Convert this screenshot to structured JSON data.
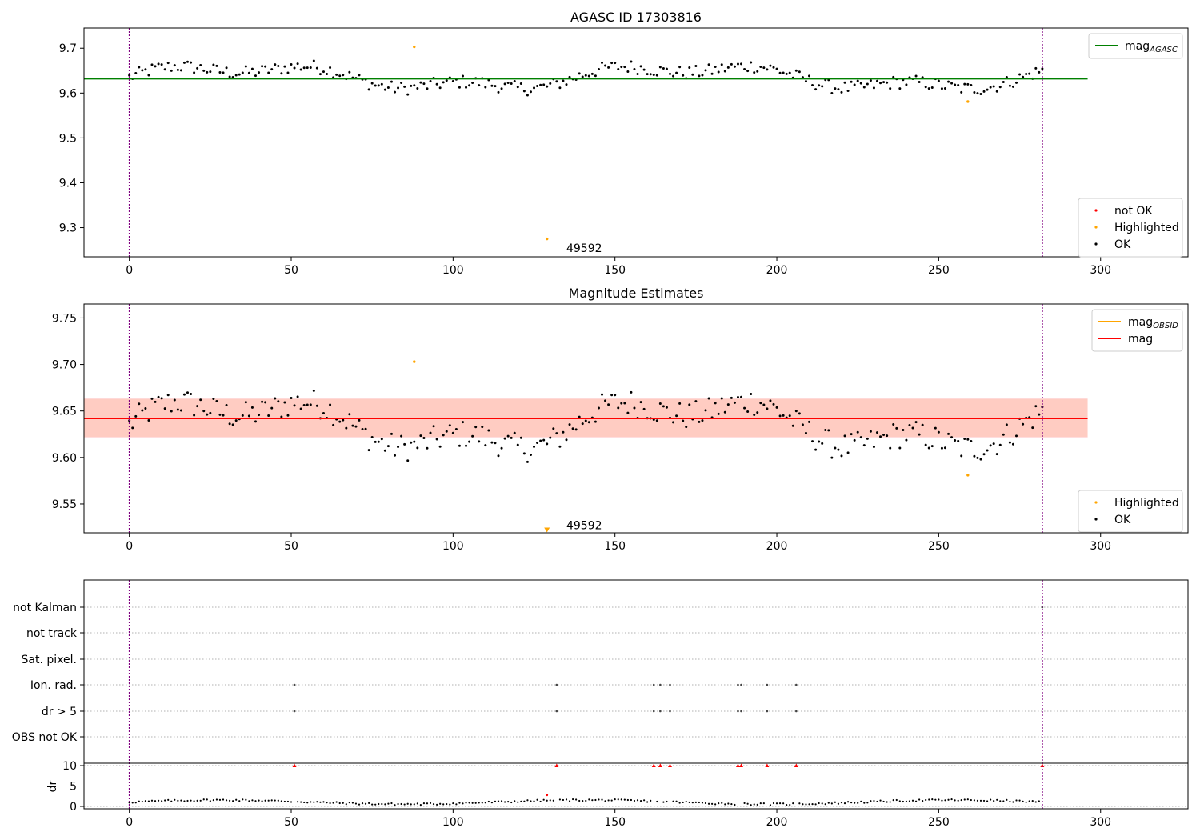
{
  "chart_data": [
    {
      "type": "scatter",
      "title": "AGASC ID 17303816",
      "xlim": [
        -14,
        327
      ],
      "ylim": [
        9.235,
        9.745
      ],
      "xticks": [
        0,
        50,
        100,
        150,
        200,
        250,
        300
      ],
      "yticks": [
        9.3,
        9.4,
        9.5,
        9.6,
        9.7
      ],
      "vlines": [
        0,
        282
      ],
      "hline": {
        "value": 9.632,
        "xmax": 296,
        "color": "#008000",
        "label": "mag",
        "label_sub": "AGASC"
      },
      "annotation": {
        "text": "49592",
        "x": 135,
        "y": 9.255
      },
      "legends": [
        {
          "position": "top-right",
          "entries": [
            {
              "kind": "line",
              "color": "#008000",
              "label": "mag",
              "sub": "AGASC"
            }
          ]
        },
        {
          "position": "bottom-right",
          "entries": [
            {
              "kind": "dot",
              "color": "#ff0000",
              "label": "not OK"
            },
            {
              "kind": "dot",
              "color": "#ffa500",
              "label": "Highlighted"
            },
            {
              "kind": "dot",
              "color": "#000000",
              "label": "OK"
            }
          ]
        }
      ],
      "highlighted": [
        [
          88,
          9.703
        ],
        [
          129,
          9.275
        ],
        [
          259,
          9.581
        ]
      ]
    },
    {
      "type": "scatter",
      "title": "Magnitude Estimates",
      "xlim": [
        -14,
        327
      ],
      "ylim": [
        9.519,
        9.765
      ],
      "xticks": [
        0,
        50,
        100,
        150,
        200,
        250,
        300
      ],
      "yticks": [
        9.55,
        9.6,
        9.65,
        9.7,
        9.75
      ],
      "vlines": [
        0,
        282
      ],
      "hline": {
        "value": 9.642,
        "xmax": 296,
        "color": "#ff0000",
        "label": "mag"
      },
      "band_outer": [
        9.621,
        9.664
      ],
      "band_inner": [
        9.622,
        9.663
      ],
      "annotation": {
        "text": "49592",
        "x": 135,
        "y": 9.527
      },
      "legends": [
        {
          "position": "top-right",
          "entries": [
            {
              "kind": "line",
              "color": "#ffa500",
              "label": "mag",
              "sub": "OBSID"
            },
            {
              "kind": "line",
              "color": "#ff0000",
              "label": "mag"
            }
          ]
        },
        {
          "position": "bottom-right",
          "entries": [
            {
              "kind": "dot",
              "color": "#ffa500",
              "label": "Highlighted"
            },
            {
              "kind": "dot",
              "color": "#000000",
              "label": "OK"
            }
          ]
        }
      ],
      "highlighted": [
        [
          88,
          9.703
        ],
        [
          259,
          9.581
        ]
      ],
      "offscale_marker": {
        "x": 129,
        "y": 9.522
      }
    },
    {
      "type": "scatter",
      "title": "",
      "xlim": [
        -14,
        327
      ],
      "xticks": [
        0,
        50,
        100,
        150,
        200,
        250,
        300
      ],
      "vlines": [
        0,
        282
      ],
      "flag_rows": [
        "not Kalman",
        "not track",
        "Sat. pixel.",
        "Ion. rad.",
        "dr > 5",
        "OBS not OK"
      ],
      "flag_points": {
        "not Kalman": [
          282
        ],
        "Ion. rad.": [
          51,
          132,
          162,
          164,
          167,
          188,
          189,
          197,
          206
        ],
        "dr > 5": [
          51,
          132,
          162,
          164,
          167,
          188,
          189,
          197,
          206
        ]
      },
      "dr_ylabel": "dr",
      "dr_ylim": [
        -0.5,
        10.5
      ],
      "dr_yticks": [
        0,
        5,
        10
      ],
      "dr_capped": [
        51,
        132,
        162,
        164,
        167,
        188,
        189,
        197,
        206,
        282
      ],
      "dr_outlier": [
        129,
        2.8
      ]
    }
  ]
}
